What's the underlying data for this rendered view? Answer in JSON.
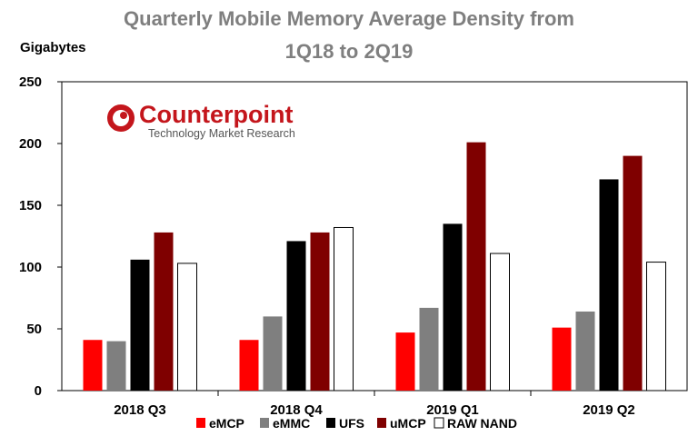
{
  "chart_data": {
    "type": "bar",
    "title_line1": "Quarterly Mobile Memory Average Density from",
    "title_line2": "1Q18 to 2Q19",
    "ylabel": "Gigabytes",
    "xlabel": "",
    "ylim": [
      0,
      250
    ],
    "yticks": [
      0,
      50,
      100,
      150,
      200,
      250
    ],
    "grid": false,
    "legend_position": "bottom",
    "categories": [
      "2018 Q3",
      "2018 Q4",
      "2019 Q1",
      "2019 Q2"
    ],
    "series": [
      {
        "name": "eMCP",
        "color": "#ff0000",
        "values": [
          41,
          41,
          47,
          51
        ]
      },
      {
        "name": "eMMC",
        "color": "#7f7f7f",
        "values": [
          40,
          60,
          67,
          64
        ]
      },
      {
        "name": "UFS",
        "color": "#000000",
        "values": [
          106,
          121,
          135,
          171
        ]
      },
      {
        "name": "uMCP",
        "color": "#7f0000",
        "values": [
          128,
          128,
          201,
          190
        ]
      },
      {
        "name": "RAW NAND",
        "color": "#ffffff",
        "values": [
          103,
          132,
          111,
          104
        ]
      }
    ]
  },
  "logo": {
    "name": "Counterpoint",
    "tagline": "Technology Market Research",
    "color": "#c4161c"
  }
}
